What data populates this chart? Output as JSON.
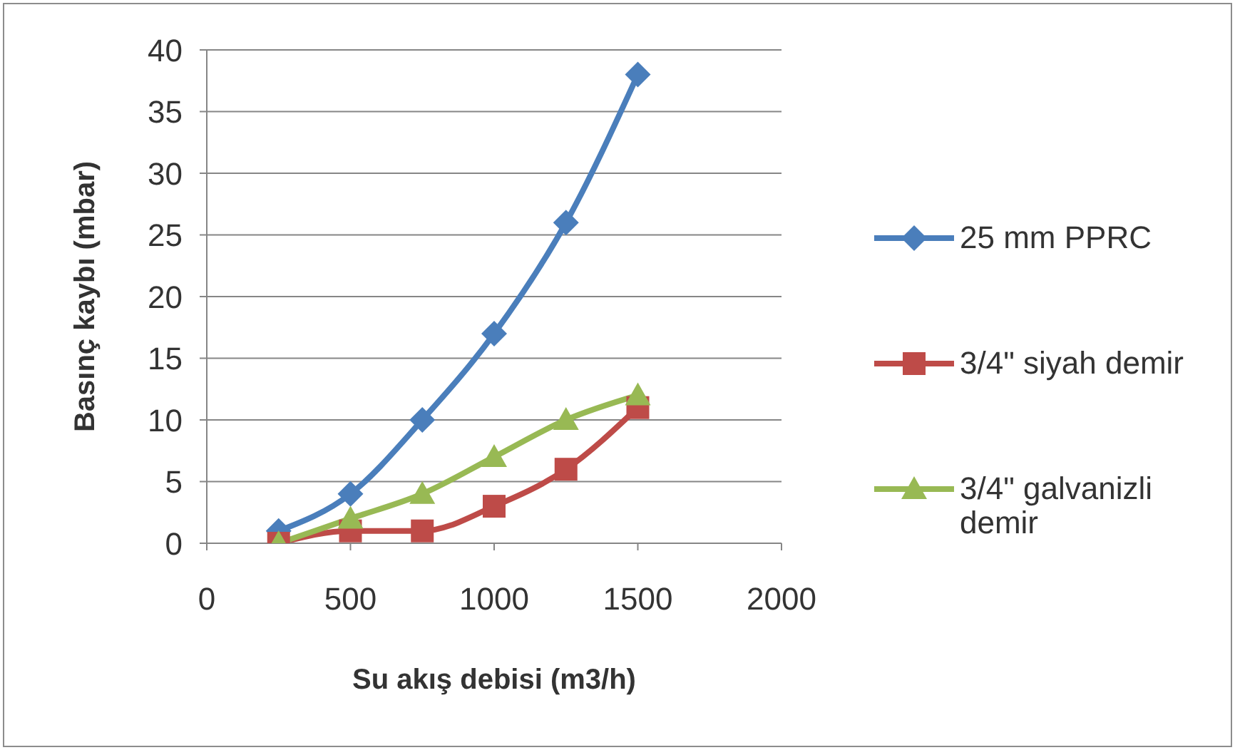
{
  "chart_data": {
    "type": "line",
    "xlabel": "Su akış debisi (m3/h)",
    "ylabel": "Basınç kaybı (mbar)",
    "x": [
      250,
      500,
      750,
      1000,
      1250,
      1500
    ],
    "series": [
      {
        "name": "25 mm PPRC",
        "color": "#4a7ebb",
        "marker": "diamond",
        "values": [
          1,
          4,
          10,
          17,
          26,
          38
        ]
      },
      {
        "name": "3/4\" siyah demir",
        "color": "#be4b48",
        "marker": "square",
        "values": [
          0,
          1,
          1,
          3,
          6,
          11
        ]
      },
      {
        "name": "3/4\" galvanizli demir",
        "color": "#98b954",
        "marker": "triangle",
        "values": [
          0,
          2,
          4,
          7,
          10,
          12
        ]
      }
    ],
    "xlim": [
      0,
      2000
    ],
    "xticks": [
      0,
      500,
      1000,
      1500,
      2000
    ],
    "ylim": [
      0,
      40
    ],
    "yticks": [
      0,
      5,
      10,
      15,
      20,
      25,
      30,
      35,
      40
    ],
    "grid": "y",
    "legend": "right",
    "line_style": "solid"
  }
}
